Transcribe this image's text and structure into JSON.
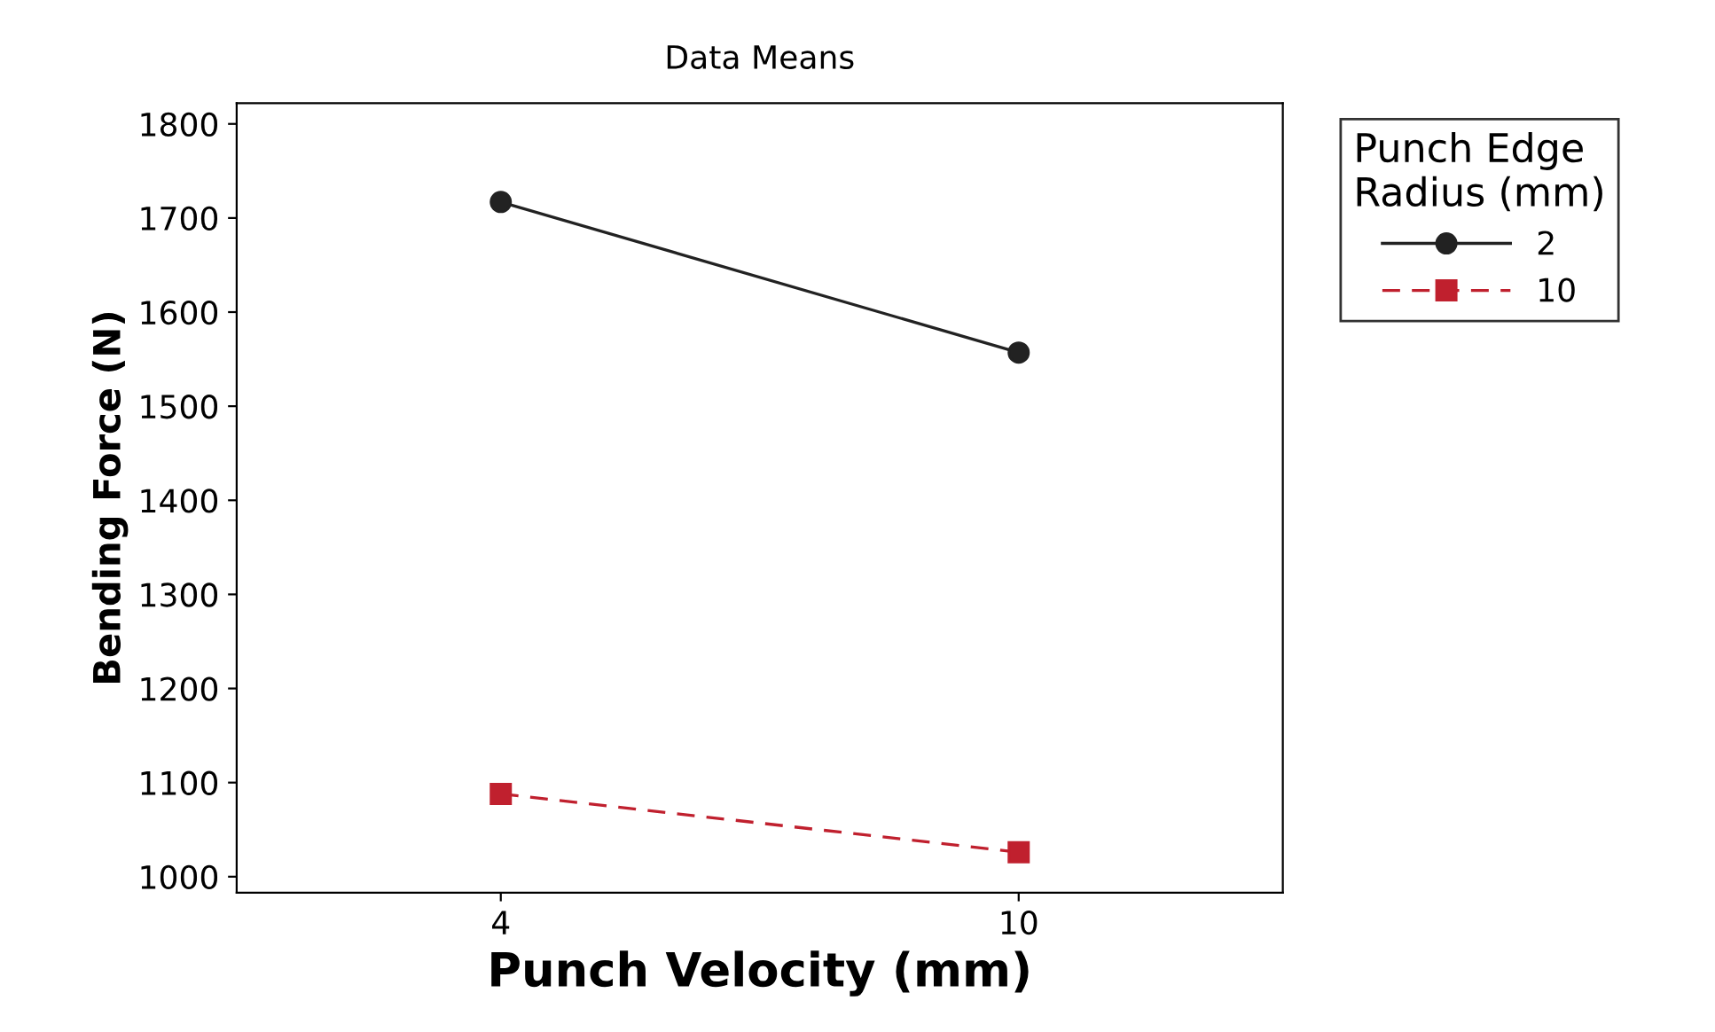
{
  "chart_data": {
    "type": "line",
    "subtitle": "Data Means",
    "xlabel": "Punch Velocity (mm)",
    "ylabel": "Bending Force (N)",
    "legend_title": "Punch Edge\nRadius (mm)",
    "categories": [
      "4",
      "10"
    ],
    "series": [
      {
        "name": "2",
        "color": "#222222",
        "values": [
          1717,
          1557
        ],
        "marker": "circle",
        "line_style": "solid"
      },
      {
        "name": "10",
        "color": "#c0202e",
        "values": [
          1088,
          1026
        ],
        "marker": "square",
        "line_style": "dashed"
      }
    ],
    "ylim": [
      983,
      1822
    ],
    "yticks": [
      1000,
      1100,
      1200,
      1300,
      1400,
      1500,
      1600,
      1700,
      1800
    ],
    "grid": false,
    "legend": "top right"
  }
}
